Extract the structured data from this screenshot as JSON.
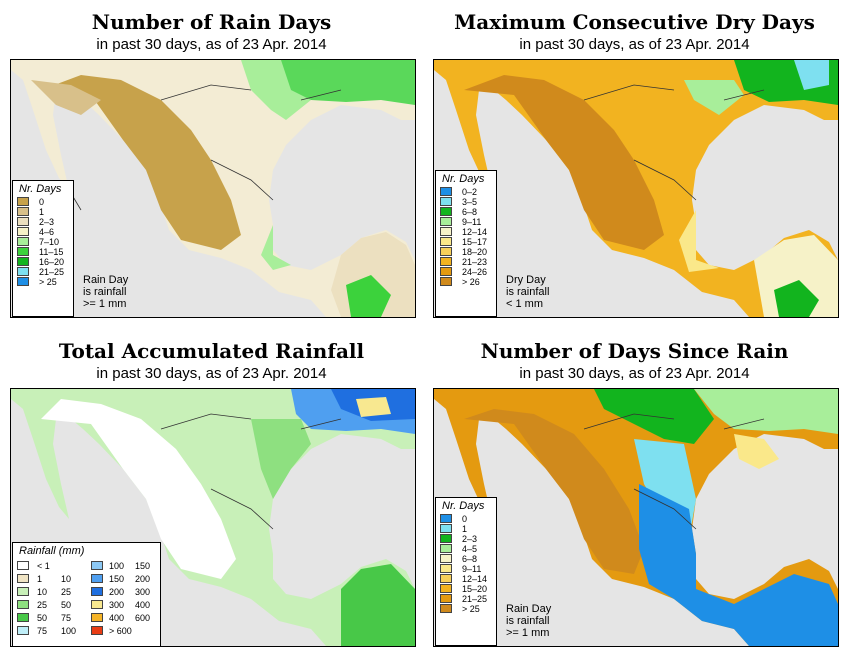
{
  "panels": [
    {
      "title": "Number of Rain Days",
      "subtitle": "in past 30 days, as of  23 Apr. 2014",
      "legend": {
        "title": "Nr. Days",
        "items": [
          {
            "label": "0",
            "color": "#c7a24b"
          },
          {
            "label": "1",
            "color": "#d8c08a"
          },
          {
            "label": "2–3",
            "color": "#ece0c0"
          },
          {
            "label": "4–6",
            "color": "#f6f2c8"
          },
          {
            "label": "7–10",
            "color": "#a8ee9a"
          },
          {
            "label": "11–15",
            "color": "#3cd23c"
          },
          {
            "label": "16–20",
            "color": "#12b41e"
          },
          {
            "label": "21–25",
            "color": "#7ee0f0"
          },
          {
            "label": "> 25",
            "color": "#1e8fe6"
          }
        ]
      },
      "note": [
        "Rain Day",
        "is rainfall",
        ">= 1 mm"
      ]
    },
    {
      "title": "Maximum Consecutive Dry Days",
      "subtitle": "in past 30 days, as of  23 Apr. 2014",
      "legend": {
        "title": "Nr. Days",
        "items": [
          {
            "label": "0–2",
            "color": "#1e8fe6"
          },
          {
            "label": "3–5",
            "color": "#7ee0f0"
          },
          {
            "label": "6–8",
            "color": "#12b41e"
          },
          {
            "label": "9–11",
            "color": "#a8ee9a"
          },
          {
            "label": "12–14",
            "color": "#f6f2c8"
          },
          {
            "label": "15–17",
            "color": "#fae88a"
          },
          {
            "label": "18–20",
            "color": "#f7d05a"
          },
          {
            "label": "21–23",
            "color": "#f2b320"
          },
          {
            "label": "24–26",
            "color": "#e49a10"
          },
          {
            "label": "> 26",
            "color": "#d08a1c"
          }
        ]
      },
      "note": [
        "Dry Day",
        "is rainfall",
        "< 1 mm"
      ]
    },
    {
      "title": "Total Accumulated Rainfall",
      "subtitle": "in past 30 days, as of  23 Apr. 2014",
      "legend": {
        "title": "Rainfall (mm)",
        "items": [
          {
            "lo": "< 1",
            "hi": "",
            "color": "#ffffff"
          },
          {
            "lo": "1",
            "hi": "10",
            "color": "#f0e4c4"
          },
          {
            "lo": "10",
            "hi": "25",
            "color": "#c8f0b8"
          },
          {
            "lo": "25",
            "hi": "50",
            "color": "#8ee080"
          },
          {
            "lo": "50",
            "hi": "75",
            "color": "#48c848"
          },
          {
            "lo": "75",
            "hi": "100",
            "color": "#bfeef8"
          },
          {
            "lo": "100",
            "hi": "150",
            "color": "#8cc8f4"
          },
          {
            "lo": "150",
            "hi": "200",
            "color": "#4f9ff0"
          },
          {
            "lo": "200",
            "hi": "300",
            "color": "#1f6fe0"
          },
          {
            "lo": "300",
            "hi": "400",
            "color": "#f8e890"
          },
          {
            "lo": "400",
            "hi": "600",
            "color": "#f5b428"
          },
          {
            "lo": "> 600",
            "hi": "",
            "color": "#e83c14"
          }
        ]
      },
      "note": []
    },
    {
      "title": "Number of Days Since Rain",
      "subtitle": "in past 30 days, as of  23 Apr. 2014",
      "legend": {
        "title": "Nr. Days",
        "items": [
          {
            "label": "0",
            "color": "#1e8fe6"
          },
          {
            "label": "1",
            "color": "#7ee0f0"
          },
          {
            "label": "2–3",
            "color": "#12b41e"
          },
          {
            "label": "4–5",
            "color": "#a8ee9a"
          },
          {
            "label": "6–8",
            "color": "#f6f2c8"
          },
          {
            "label": "9–11",
            "color": "#fae88a"
          },
          {
            "label": "12–14",
            "color": "#f7d05a"
          },
          {
            "label": "15–20",
            "color": "#f2b320"
          },
          {
            "label": "21–25",
            "color": "#e49a10"
          },
          {
            "label": "> 25",
            "color": "#d08a1c"
          }
        ]
      },
      "note": [
        "Rain Day",
        "is rainfall",
        ">= 1 mm"
      ]
    }
  ]
}
